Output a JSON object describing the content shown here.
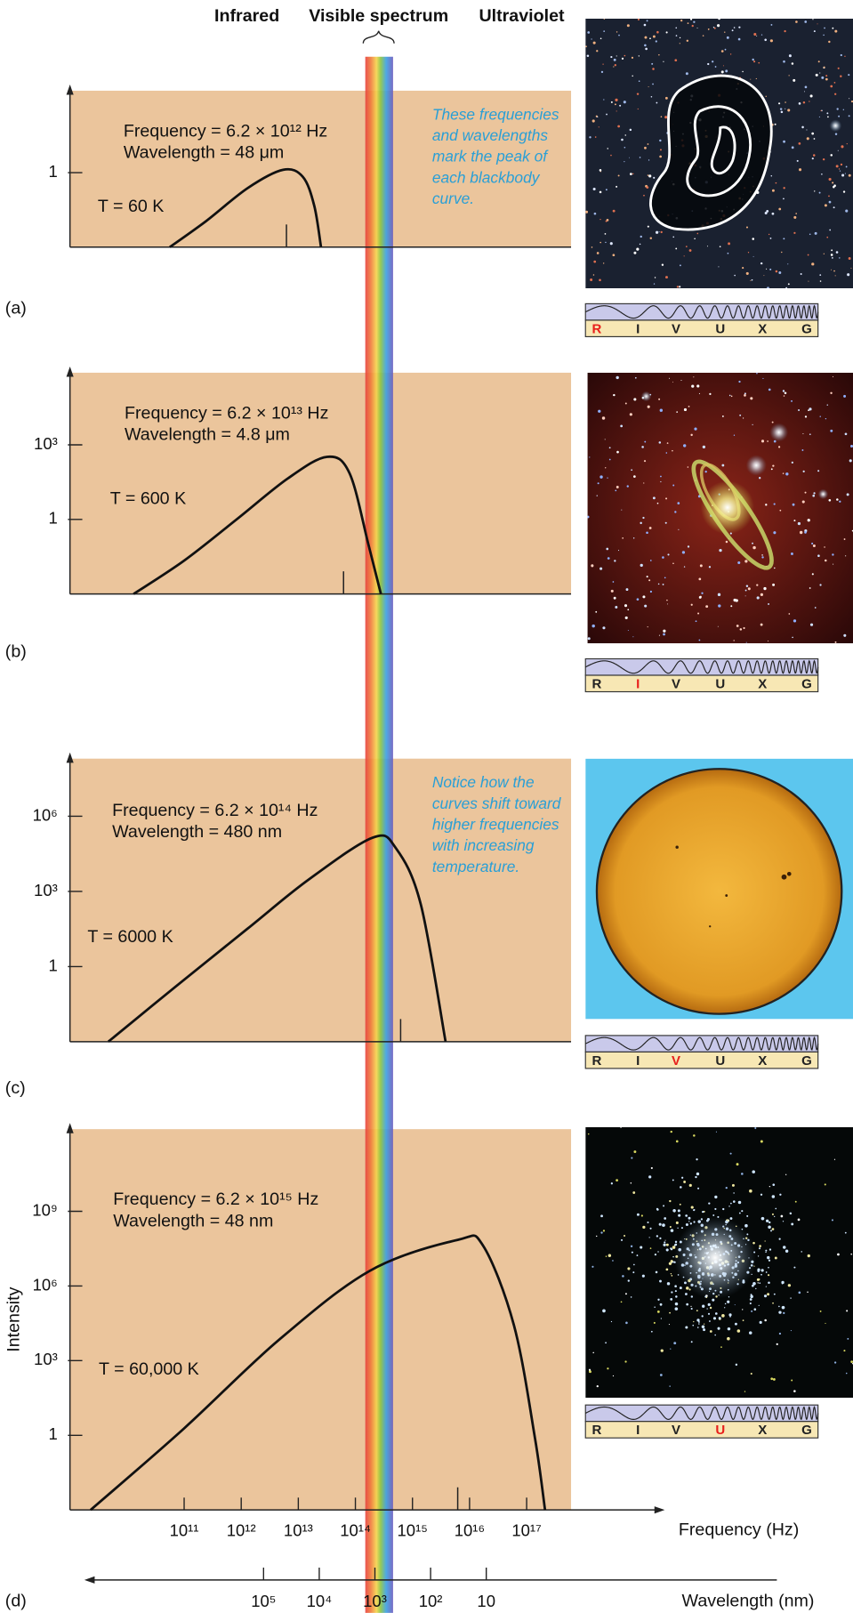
{
  "header": {
    "infrared": "Infrared",
    "visible": "Visible spectrum",
    "ultraviolet": "Ultraviolet"
  },
  "notes": [
    {
      "lines": [
        "These frequencies",
        "and wavelengths",
        "mark the peak of",
        "each blackbody",
        "curve."
      ]
    },
    {
      "lines": [
        "Notice how the",
        "curves shift toward",
        "higher frequencies",
        "with increasing",
        "temperature."
      ]
    }
  ],
  "rivuxg": {
    "labels": [
      "R",
      "I",
      "V",
      "U",
      "X",
      "G"
    ],
    "color": "#222222",
    "highlight_color": "#e8201c"
  },
  "chart_data": [
    {
      "type": "line",
      "panel_label": "(a)",
      "frequency_text": "Frequency = 6.2 × 10¹² Hz",
      "wavelength_text": "Wavelength = 48 μm",
      "temperature_text": "T = 60 K",
      "peak_frequency": 6200000000000.0,
      "rivuxg_highlight": "R",
      "color": "#111111",
      "xscale": "log",
      "yscale": "log",
      "xlim": [
        1000000000.0,
        6e+17
      ],
      "ylim": [
        0.001,
        2000
      ],
      "yticks": [
        1
      ],
      "x": [
        56000000000.0,
        240000000000.0,
        1300000000000.0,
        5400000000000.0,
        12000000000000.0,
        19000000000000.0,
        25000000000000.0
      ],
      "values": [
        0.001,
        0.011,
        0.24,
        1.3,
        0.68,
        0.047,
        0.001
      ]
    },
    {
      "type": "line",
      "panel_label": "(b)",
      "frequency_text": "Frequency = 6.2 × 10¹³ Hz",
      "wavelength_text": "Wavelength = 4.8 μm",
      "temperature_text": "T = 600 K",
      "peak_frequency": 62000000000000.0,
      "rivuxg_highlight": "I",
      "color": "#111111",
      "xscale": "log",
      "yscale": "log",
      "xlim": [
        1000000000.0,
        6e+17
      ],
      "ylim": [
        0.001,
        800000
      ],
      "yticks": [
        1,
        {
          "value": 1000,
          "label": "10³"
        }
      ],
      "x": [
        13000000000.0,
        100000000000.0,
        830000000000.0,
        6600000000000.0,
        32000000000000.0,
        79000000000000.0,
        170000000000000.0,
        280000000000000.0
      ],
      "values": [
        0.001,
        0.022,
        1,
        45,
        330,
        72,
        0.093,
        0.001
      ]
    },
    {
      "type": "line",
      "panel_label": "(c)",
      "frequency_text": "Frequency = 6.2 × 10¹⁴ Hz",
      "wavelength_text": "Wavelength = 480 nm",
      "temperature_text": "T = 6000 K",
      "peak_frequency": 620000000000000.0,
      "rivuxg_highlight": "V",
      "color": "#111111",
      "xscale": "log",
      "yscale": "log",
      "xlim": [
        1000000000.0,
        6e+17
      ],
      "ylim": [
        0.001,
        200000000.0
      ],
      "yticks": [
        1,
        {
          "value": 1000,
          "label": "10³"
        },
        {
          "value": 1000000,
          "label": "10⁶"
        }
      ],
      "x": [
        4700000000.0,
        69000000000.0,
        1300000000000.0,
        15000000000000.0,
        200000000000000.0,
        510000000000000.0,
        1400000000000000.0,
        3800000000000000.0
      ],
      "values": [
        0.001,
        0.15,
        33,
        2900,
        140000,
        54000,
        300,
        0.001
      ]
    },
    {
      "type": "line",
      "panel_label": "(d)",
      "frequency_text": "Frequency = 6.2 × 10¹⁵ Hz",
      "wavelength_text": "Wavelength = 48 nm",
      "temperature_text": "T = 60,000 K",
      "peak_frequency": 6200000000000000.0,
      "rivuxg_highlight": "U",
      "color": "#111111",
      "xscale": "log",
      "yscale": "log",
      "xlim": [
        1000000000.0,
        6e+17
      ],
      "ylim": [
        0.001,
        2000000000000.0
      ],
      "yticks": [
        1,
        {
          "value": 1000,
          "label": "10³"
        },
        {
          "value": 1000000,
          "label": "10⁶"
        },
        {
          "value": 1000000000,
          "label": "10⁹"
        }
      ],
      "xticks": [
        {
          "value": 100000000000.0,
          "label": "10¹¹"
        },
        {
          "value": 1000000000000.0,
          "label": "10¹²"
        },
        {
          "value": 10000000000000.0,
          "label": "10¹³"
        },
        {
          "value": 100000000000000.0,
          "label": "10¹⁴"
        },
        {
          "value": 1000000000000000.0,
          "label": "10¹⁵"
        },
        {
          "value": 1e+16,
          "label": "10¹⁶"
        },
        {
          "value": 1e+17,
          "label": "10¹⁷"
        }
      ],
      "xlabel": "Frequency (Hz)",
      "ylabel": "Intensity",
      "x2lim": [
        300000000.0,
        0.3
      ],
      "x2ticks": [
        {
          "value": 100000,
          "label": "10⁵"
        },
        {
          "value": 10000,
          "label": "10⁴"
        },
        {
          "value": 1000,
          "label": "10³"
        },
        {
          "value": 100,
          "label": "10²"
        },
        10
      ],
      "x2label": "Wavelength (nm)",
      "x": [
        2300000000.0,
        100000000000.0,
        4400000000000.0,
        180000000000000.0,
        6200000000000000.0,
        1.7e+16,
        6e+16,
        1.4e+17,
        2.1e+17
      ],
      "values": [
        0.001,
        1.9,
        6300,
        4100000,
        71000000,
        44000000,
        26000,
        0.76,
        0.001
      ]
    }
  ]
}
